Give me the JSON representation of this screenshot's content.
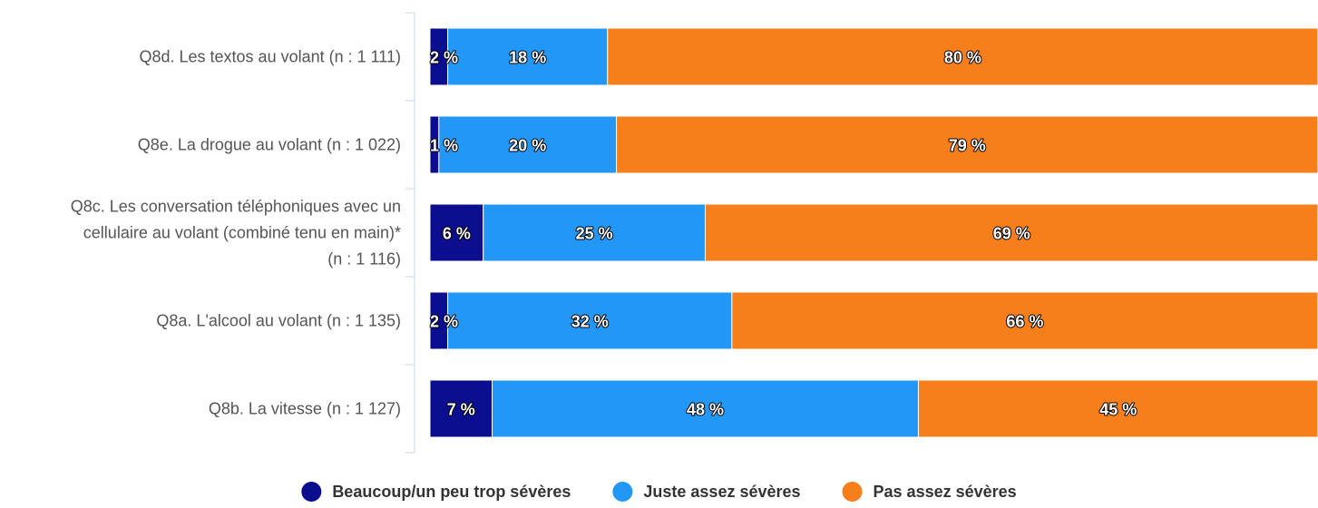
{
  "chart_data": {
    "type": "bar",
    "orientation": "horizontal",
    "stacked": true,
    "percent": true,
    "title": "",
    "xlabel": "",
    "ylabel": "",
    "xlim": [
      0,
      100
    ],
    "grid": false,
    "legend_position": "bottom",
    "categories": [
      [
        "Q8d. Les textos au volant (n : 1 111)"
      ],
      [
        "Q8e. La drogue au volant (n : 1 022)"
      ],
      [
        "Q8c. Les conversation téléphoniques avec un",
        "cellulaire au volant (combiné tenu en main)*",
        "(n : 1 116)"
      ],
      [
        "Q8a. L'alcool au volant (n : 1 135)"
      ],
      [
        "Q8b. La vitesse (n : 1 127)"
      ]
    ],
    "series": [
      {
        "name": "Beaucoup/un peu trop sévères",
        "color": "#0b0e8e",
        "values": [
          2,
          1,
          6,
          2,
          7
        ],
        "labels": [
          "2 %",
          "1 %",
          "6 %",
          "2 %",
          "7 %"
        ]
      },
      {
        "name": "Juste assez sévères",
        "color": "#2397f5",
        "values": [
          18,
          20,
          25,
          32,
          48
        ],
        "labels": [
          "18 %",
          "20 %",
          "25 %",
          "32 %",
          "48 %"
        ]
      },
      {
        "name": "Pas assez sévères",
        "color": "#f77f1b",
        "values": [
          80,
          79,
          69,
          66,
          45
        ],
        "labels": [
          "80 %",
          "79 %",
          "69 %",
          "66 %",
          "45 %"
        ]
      }
    ]
  }
}
